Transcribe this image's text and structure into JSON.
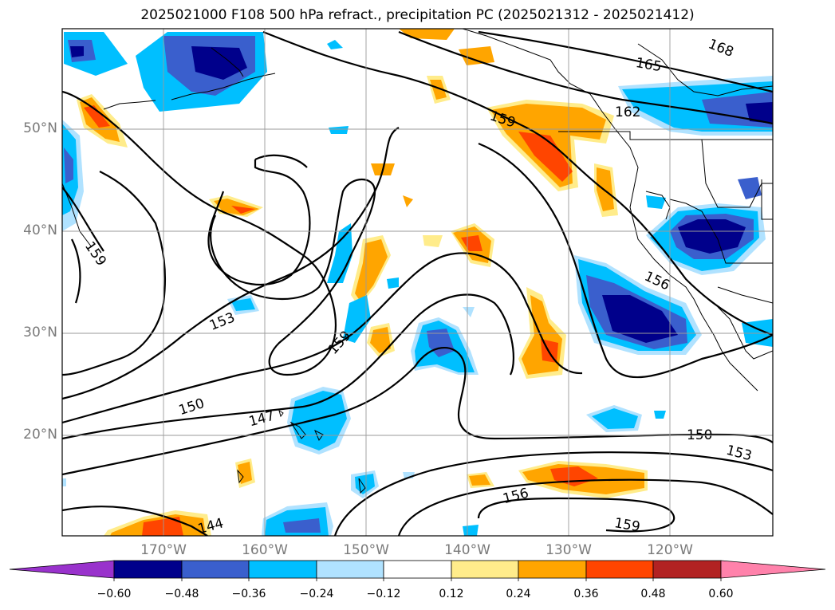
{
  "title": "2025021000 F108 500 hPa refract., precipitation PC (2025021312 - 2025021412)",
  "lat_labels": [
    {
      "id": "50n",
      "text": "50°N"
    },
    {
      "id": "40n",
      "text": "40°N"
    },
    {
      "id": "30n",
      "text": "30°N"
    },
    {
      "id": "20n",
      "text": "20°N"
    }
  ],
  "lon_labels": [
    {
      "id": "170w",
      "text": "170°W"
    },
    {
      "id": "160w",
      "text": "160°W"
    },
    {
      "id": "150w",
      "text": "150°W"
    },
    {
      "id": "140w",
      "text": "140°W"
    },
    {
      "id": "130w",
      "text": "130°W"
    },
    {
      "id": "120w",
      "text": "120°W"
    }
  ],
  "contour_labels": [
    "168",
    "165",
    "162",
    "159",
    "159",
    "159",
    "156",
    "153",
    "153",
    "150",
    "150",
    "147",
    "144",
    "156",
    "159"
  ],
  "colorbar": {
    "ticks": [
      "−0.60",
      "−0.48",
      "−0.36",
      "−0.24",
      "−0.12",
      "0.12",
      "0.24",
      "0.36",
      "0.48",
      "0.60"
    ],
    "colors": [
      "#9932CC",
      "#00008B",
      "#3A5FCD",
      "#00BFFF",
      "#B0E2FF",
      "#FFFFFF",
      "#FFEC8B",
      "#FFA500",
      "#FF4500",
      "#B22222",
      "#FF82AB"
    ]
  }
}
